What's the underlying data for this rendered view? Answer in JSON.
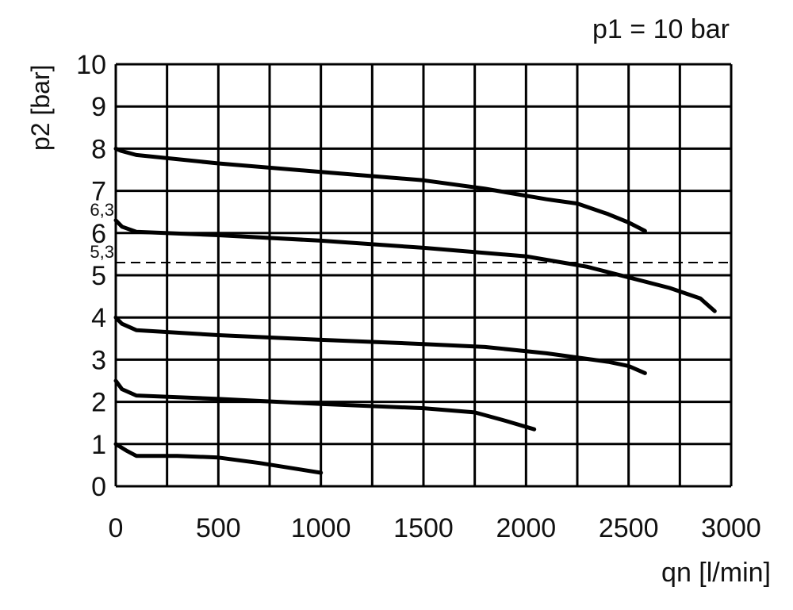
{
  "chart_data": {
    "type": "line",
    "title": "p1 = 10 bar",
    "ylabel": "p2 [bar]",
    "xlabel": "qn [l/min]",
    "xlim": [
      0,
      3000
    ],
    "xticks": [
      0,
      500,
      1000,
      1500,
      2000,
      2500,
      3000
    ],
    "xminorticks": [
      250,
      750,
      1250,
      1750,
      2250,
      2750
    ],
    "ylim": [
      0,
      10
    ],
    "yticks": [
      0,
      1,
      2,
      3,
      4,
      5,
      6,
      7,
      8,
      9,
      10
    ],
    "grid": true,
    "annotations": [
      {
        "value": 6.3,
        "label": "6,3"
      },
      {
        "value": 5.3,
        "label": "5,3",
        "line": "dashed"
      }
    ],
    "series": [
      {
        "color": "#000000",
        "x": [
          0,
          25,
          100,
          500,
          1000,
          1500,
          1800,
          2100,
          2250,
          2400,
          2500,
          2580
        ],
        "values": [
          8,
          7.95,
          7.85,
          7.65,
          7.45,
          7.25,
          7.05,
          6.8,
          6.7,
          6.45,
          6.25,
          6.05
        ]
      },
      {
        "color": "#000000",
        "x": [
          0,
          30,
          100,
          500,
          1000,
          1500,
          2000,
          2300,
          2500,
          2700,
          2850,
          2920
        ],
        "values": [
          6.3,
          6.15,
          6.03,
          5.95,
          5.82,
          5.65,
          5.45,
          5.2,
          4.95,
          4.7,
          4.45,
          4.15
        ]
      },
      {
        "color": "#000000",
        "x": [
          0,
          30,
          100,
          500,
          1000,
          1500,
          1800,
          2100,
          2400,
          2500,
          2580
        ],
        "values": [
          4,
          3.85,
          3.7,
          3.58,
          3.47,
          3.37,
          3.3,
          3.15,
          2.95,
          2.85,
          2.68
        ]
      },
      {
        "color": "#000000",
        "x": [
          0,
          30,
          100,
          500,
          1000,
          1500,
          1750,
          1900,
          2040
        ],
        "values": [
          2.5,
          2.3,
          2.15,
          2.07,
          1.95,
          1.85,
          1.75,
          1.55,
          1.35
        ]
      },
      {
        "color": "#000000",
        "x": [
          0,
          50,
          100,
          300,
          500,
          700,
          1000
        ],
        "values": [
          1,
          0.85,
          0.72,
          0.72,
          0.68,
          0.55,
          0.32
        ]
      }
    ]
  }
}
